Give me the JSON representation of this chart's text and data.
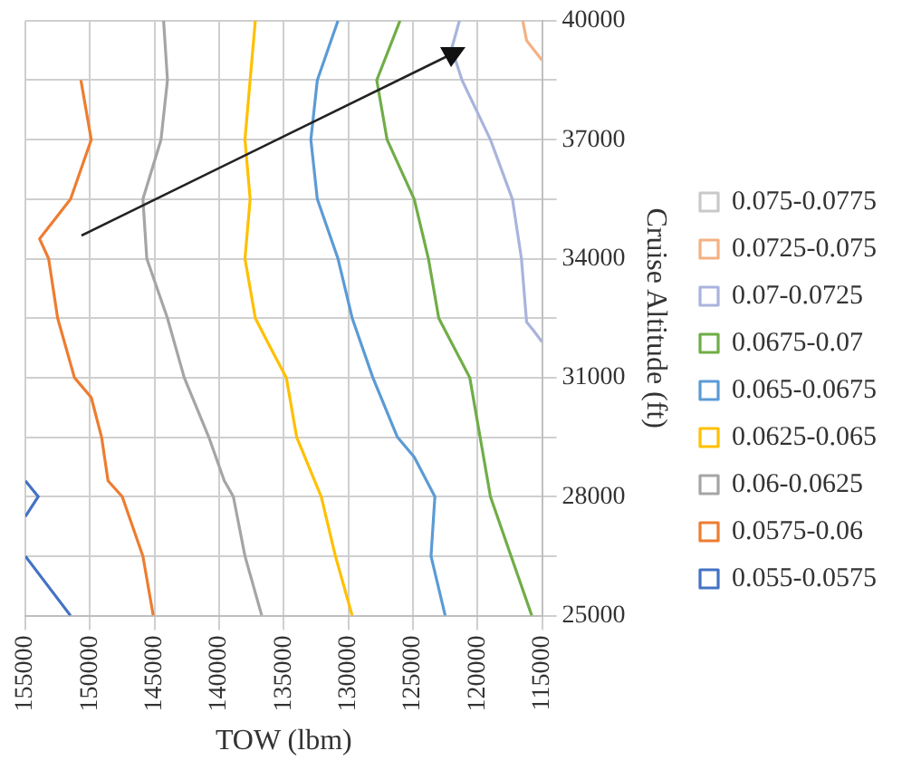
{
  "chart_data": {
    "type": "line",
    "xlabel": "TOW (lbm)",
    "ylabel": "Cruise Altitude (ft)",
    "xlim": [
      155000,
      115000
    ],
    "xticks": [
      155000,
      150000,
      145000,
      140000,
      135000,
      130000,
      125000,
      120000,
      115000
    ],
    "ylim": [
      25000,
      40000
    ],
    "yticks": [
      25000,
      {
        "value": 26500,
        "label": null
      },
      28000,
      {
        "value": 29500,
        "label": null
      },
      31000,
      {
        "value": 32500,
        "label": null
      },
      34000,
      {
        "value": 35500,
        "label": null
      },
      37000,
      {
        "value": 38500,
        "label": null
      },
      40000
    ],
    "grid": true,
    "legend": "right",
    "marker": "none",
    "line_style": "solid",
    "series": [
      {
        "name": "0.055-0.0575",
        "color": "#4472c4",
        "x": [
          155000,
          154000,
          155000,
          null,
          155000,
          151500
        ],
        "values": [
          28400,
          28000,
          27500,
          null,
          26500,
          25000
        ]
      },
      {
        "name": "0.0575-0.06",
        "color": "#ed7d31",
        "x": [
          150700,
          149900,
          151500,
          153900,
          153200,
          152500,
          151200,
          149900,
          149100,
          148600,
          147500,
          145900,
          145100
        ],
        "values": [
          38500,
          37000,
          35500,
          34500,
          34000,
          32500,
          31000,
          30500,
          29500,
          28400,
          28000,
          26500,
          25000
        ]
      },
      {
        "name": "0.06-0.0625",
        "color": "#a5a5a5",
        "x": [
          144300,
          144000,
          144500,
          145900,
          145600,
          144000,
          142700,
          140800,
          139600,
          138900,
          138000,
          136700
        ],
        "values": [
          40000,
          38500,
          37000,
          35500,
          34000,
          32500,
          31000,
          29500,
          28400,
          28000,
          26500,
          25000
        ]
      },
      {
        "name": "0.0625-0.065",
        "color": "#ffc000",
        "x": [
          137200,
          137600,
          138000,
          137600,
          138000,
          137200,
          136100,
          134800,
          134000,
          132100,
          131000,
          129700
        ],
        "values": [
          40000,
          38500,
          37000,
          35500,
          34000,
          32500,
          31800,
          31000,
          29500,
          28000,
          26500,
          25000
        ]
      },
      {
        "name": "0.065-0.0675",
        "color": "#5b9bd5",
        "x": [
          130800,
          132400,
          132900,
          132400,
          130800,
          129700,
          128100,
          126200,
          124900,
          123300,
          123600,
          122500
        ],
        "values": [
          40000,
          38500,
          37000,
          35500,
          34000,
          32500,
          31000,
          29500,
          29000,
          28000,
          26500,
          25000
        ]
      },
      {
        "name": "0.0675-0.07",
        "color": "#70ad47",
        "x": [
          126000,
          127800,
          127000,
          124900,
          123800,
          123000,
          120600,
          119800,
          119000,
          117400,
          115800
        ],
        "values": [
          40000,
          38500,
          37000,
          35500,
          34000,
          32500,
          31000,
          29500,
          28000,
          26500,
          25000
        ]
      },
      {
        "name": "0.07-0.0725",
        "color": "#a9b4dd",
        "x": [
          121400,
          122000,
          121200,
          119000,
          117300,
          116600,
          116200,
          115700,
          115000
        ],
        "values": [
          40000,
          39300,
          38500,
          37000,
          35500,
          34000,
          32400,
          32200,
          31900
        ]
      },
      {
        "name": "0.0725-0.075",
        "color": "#f4b183",
        "x": [
          116500,
          116200,
          115000
        ],
        "values": [
          40000,
          39500,
          39000
        ]
      },
      {
        "name": "0.075-0.0775",
        "color": "#c9c9c9"
      }
    ]
  }
}
